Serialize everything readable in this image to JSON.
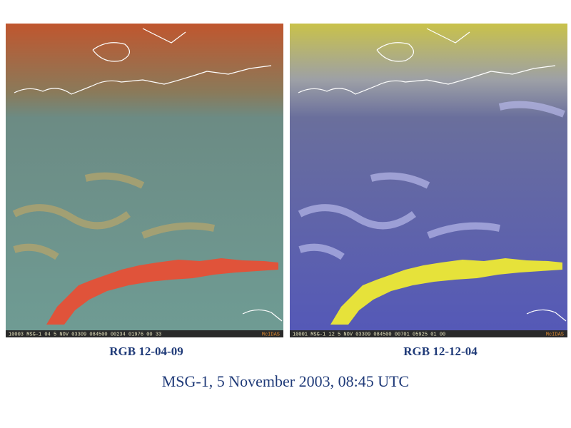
{
  "panels": [
    {
      "caption": "RGB 12-04-09",
      "status": "10003 MSG-1     04  5 NOV 03309 084500 00234 01976 00 33",
      "brand": "McIDAS"
    },
    {
      "caption": "RGB 12-12-04",
      "status": "10001 MSG-1     12  5 NOV 03309 084500 00701 05925 01 00",
      "brand": "McIDAS"
    }
  ],
  "title": "MSG-1, 5 November 2003, 08:45 UTC"
}
